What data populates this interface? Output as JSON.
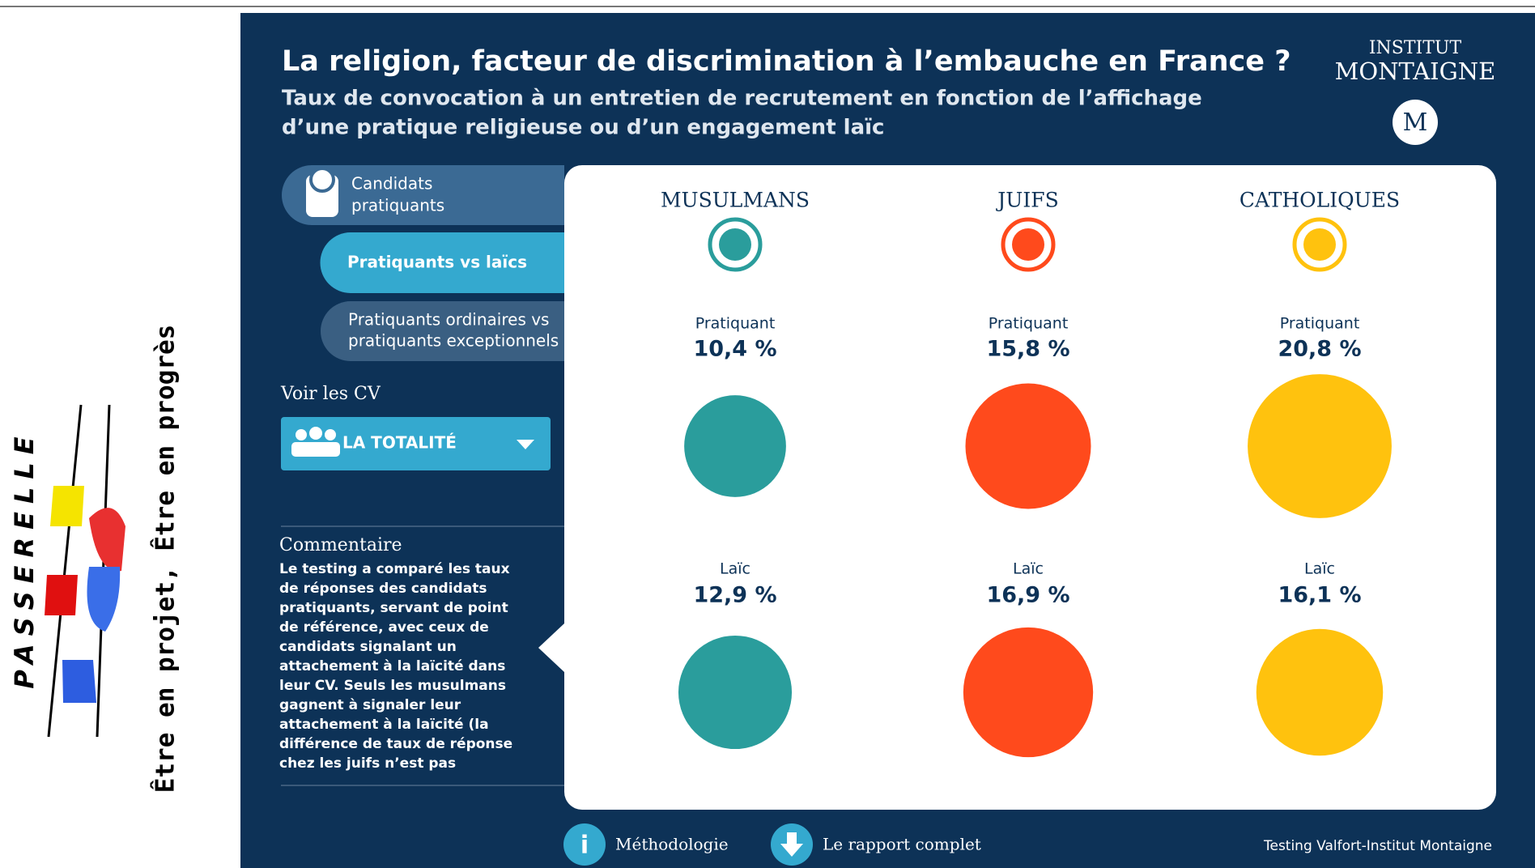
{
  "sidebar": {
    "logo": "PASSERELLE",
    "tagline": "Être en projet, Être en progrès"
  },
  "header": {
    "title": "La religion, facteur de discrimination à l’embauche en France ?",
    "subtitle": [
      "Taux de convocation à un entretien de recrutement en fonction de l’affichage",
      "d’une pratique religieuse ou d’un engagement laïc"
    ]
  },
  "institute": {
    "line1": "INSTITUT",
    "line2": "MONTAIGNE",
    "monogram": "M"
  },
  "nav": {
    "tabs": [
      [
        "Candidats",
        "pratiquants"
      ],
      [
        "Pratiquants vs laïcs"
      ],
      [
        "Pratiquants ordinaires vs",
        "pratiquants exceptionnels"
      ]
    ],
    "cv_label": "Voir les CV",
    "dropdown": "LA TOTALITÉ"
  },
  "comment": {
    "title": "Commentaire",
    "lines": [
      "Le testing a comparé les taux",
      "de réponses des candidats",
      "pratiquants, servant de point",
      "de référence, avec ceux de",
      "candidats signalant un",
      "attachement à la laïcité dans",
      "leur CV. Seuls les musulmans",
      "gagnent à signaler leur",
      "attachement à la laïcité (la",
      "différence de taux de réponse",
      "chez les juifs n’est pas"
    ]
  },
  "groups": [
    {
      "name": "MUSULMANS",
      "color": "#2a9d9c",
      "rows": [
        {
          "label": "Pratiquant",
          "value": 10.4,
          "value_label": "10,4 %"
        },
        {
          "label": "Laïc",
          "value": 12.9,
          "value_label": "12,9 %"
        }
      ]
    },
    {
      "name": "JUIFS",
      "color": "#ff4a1c",
      "rows": [
        {
          "label": "Pratiquant",
          "value": 15.8,
          "value_label": "15,8 %"
        },
        {
          "label": "Laïc",
          "value": 16.9,
          "value_label": "16,9 %"
        }
      ]
    },
    {
      "name": "CATHOLIQUES",
      "color": "#ffc20e",
      "rows": [
        {
          "label": "Pratiquant",
          "value": 20.8,
          "value_label": "20,8 %"
        },
        {
          "label": "Laïc",
          "value": 16.1,
          "value_label": "16,1 %"
        }
      ]
    }
  ],
  "footer": {
    "links": [
      "Méthodologie",
      "Le rapport complet"
    ],
    "credit": "Testing Valfort-Institut Montaigne"
  }
}
